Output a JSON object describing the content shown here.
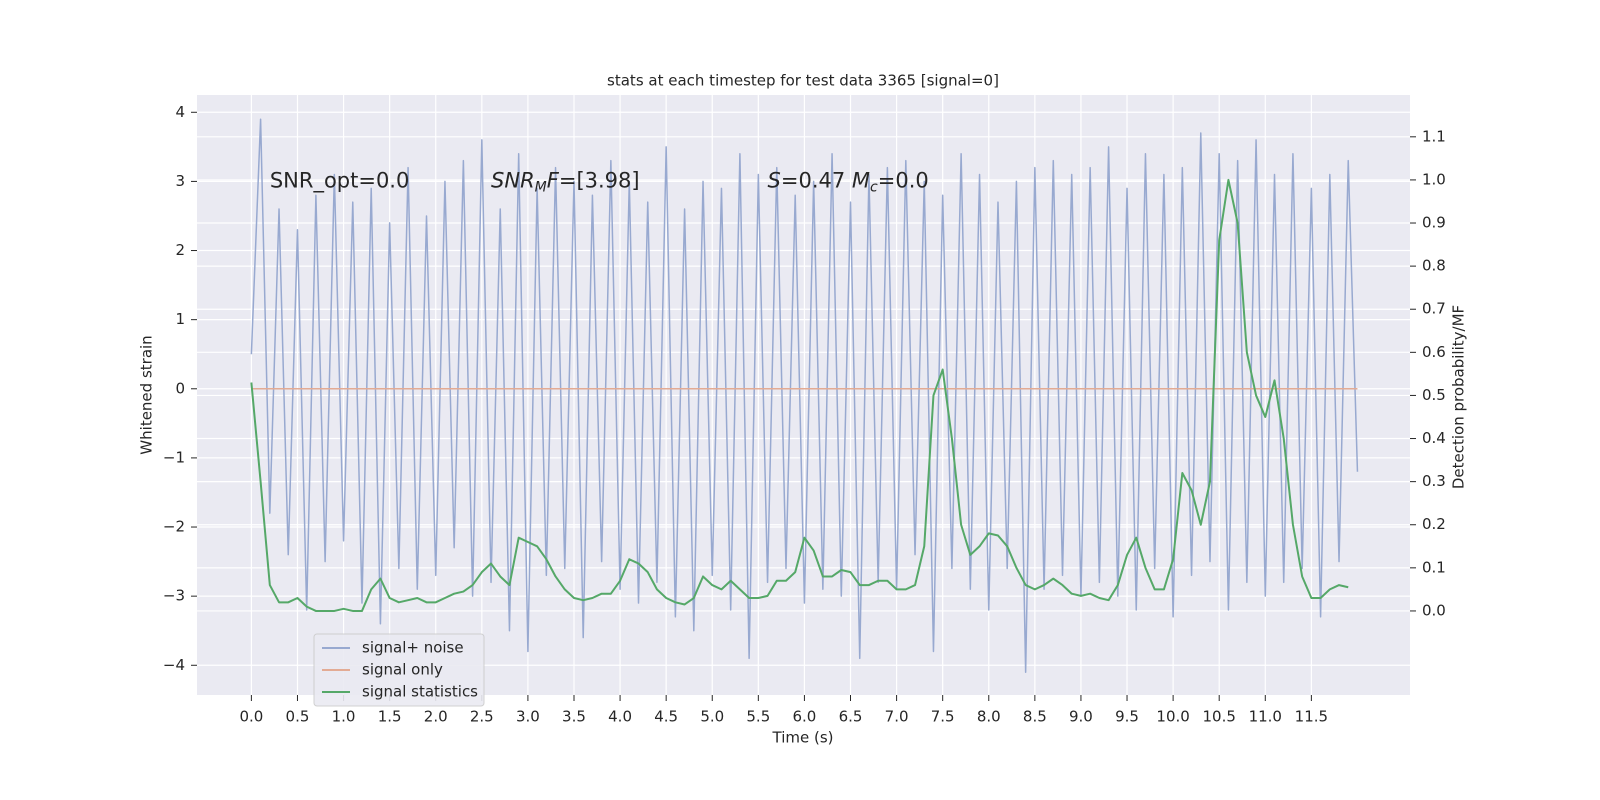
{
  "chart_data": {
    "type": "line",
    "title": "stats at each timestep for test data 3365 [signal=0]",
    "x_label": "Time (s)",
    "y_label": "Whitened strain",
    "y2_label": "Detection probability/MF",
    "x": [
      0.0,
      0.1,
      0.2,
      0.3,
      0.4,
      0.5,
      0.6,
      0.7,
      0.8,
      0.9,
      1.0,
      1.1,
      1.2,
      1.3,
      1.4,
      1.5,
      1.6,
      1.7,
      1.8,
      1.9,
      2.0,
      2.1,
      2.2,
      2.3,
      2.4,
      2.5,
      2.6,
      2.7,
      2.8,
      2.9,
      3.0,
      3.1,
      3.2,
      3.3,
      3.4,
      3.5,
      3.6,
      3.7,
      3.8,
      3.9,
      4.0,
      4.1,
      4.2,
      4.3,
      4.4,
      4.5,
      4.6,
      4.7,
      4.8,
      4.9,
      5.0,
      5.1,
      5.2,
      5.3,
      5.4,
      5.5,
      5.6,
      5.7,
      5.8,
      5.9,
      6.0,
      6.1,
      6.2,
      6.3,
      6.4,
      6.5,
      6.6,
      6.7,
      6.8,
      6.9,
      7.0,
      7.1,
      7.2,
      7.3,
      7.4,
      7.5,
      7.6,
      7.7,
      7.8,
      7.9,
      8.0,
      8.1,
      8.2,
      8.3,
      8.4,
      8.5,
      8.6,
      8.7,
      8.8,
      8.9,
      9.0,
      9.1,
      9.2,
      9.3,
      9.4,
      9.5,
      9.6,
      9.7,
      9.8,
      9.9,
      10.0,
      10.1,
      10.2,
      10.3,
      10.4,
      10.5,
      10.6,
      10.7,
      10.8,
      10.9,
      11.0,
      11.1,
      11.2,
      11.3,
      11.4,
      11.5,
      11.6,
      11.7,
      11.8,
      11.9,
      12.0
    ],
    "series": [
      {
        "name": "signal+ noise",
        "color": "#98a9d0",
        "values": [
          0.5,
          3.9,
          -1.8,
          2.6,
          -2.4,
          2.3,
          -3.2,
          2.8,
          -2.5,
          3.1,
          -2.2,
          2.7,
          -3.1,
          2.9,
          -3.4,
          2.4,
          -2.6,
          3.2,
          -2.9,
          2.5,
          -2.7,
          3.0,
          -2.3,
          3.3,
          -3.0,
          3.6,
          -2.8,
          2.6,
          -3.5,
          3.4,
          -3.8,
          2.9,
          -2.7,
          3.2,
          -2.6,
          3.0,
          -3.6,
          2.8,
          -2.5,
          3.3,
          -2.9,
          3.0,
          -3.1,
          2.7,
          -2.8,
          3.5,
          -3.3,
          2.6,
          -3.5,
          3.0,
          -2.7,
          2.9,
          -3.2,
          3.4,
          -3.9,
          3.1,
          -2.8,
          3.2,
          -2.6,
          2.8,
          -3.1,
          3.0,
          -2.9,
          3.4,
          -3.0,
          2.7,
          -3.9,
          3.1,
          -2.8,
          3.2,
          -2.9,
          3.3,
          -2.4,
          3.0,
          -3.8,
          2.8,
          -2.6,
          3.4,
          -2.9,
          3.1,
          -3.2,
          2.7,
          -2.6,
          3.0,
          -4.1,
          3.2,
          -2.9,
          3.3,
          -2.7,
          3.1,
          -3.0,
          3.2,
          -2.8,
          3.5,
          -3.0,
          2.9,
          -3.2,
          3.4,
          -2.6,
          3.1,
          -3.3,
          3.2,
          -2.7,
          3.7,
          -2.5,
          3.4,
          -3.2,
          3.3,
          -2.8,
          3.6,
          -3.0,
          3.1,
          -2.8,
          3.4,
          -2.6,
          2.9,
          -3.3,
          3.1,
          -2.5,
          3.3,
          -1.2
        ]
      },
      {
        "name": "signal only",
        "color": "#e3ab94",
        "values": [
          0,
          0,
          0,
          0,
          0,
          0,
          0,
          0,
          0,
          0,
          0,
          0,
          0,
          0,
          0,
          0,
          0,
          0,
          0,
          0,
          0,
          0,
          0,
          0,
          0,
          0,
          0,
          0,
          0,
          0,
          0,
          0,
          0,
          0,
          0,
          0,
          0,
          0,
          0,
          0,
          0,
          0,
          0,
          0,
          0,
          0,
          0,
          0,
          0,
          0,
          0,
          0,
          0,
          0,
          0,
          0,
          0,
          0,
          0,
          0,
          0,
          0,
          0,
          0,
          0,
          0,
          0,
          0,
          0,
          0,
          0,
          0,
          0,
          0,
          0,
          0,
          0,
          0,
          0,
          0,
          0,
          0,
          0,
          0,
          0,
          0,
          0,
          0,
          0,
          0,
          0,
          0,
          0,
          0,
          0,
          0,
          0,
          0,
          0,
          0,
          0,
          0,
          0,
          0,
          0,
          0,
          0,
          0,
          0,
          0,
          0,
          0,
          0,
          0,
          0,
          0,
          0,
          0,
          0,
          0,
          0
        ]
      },
      {
        "name": "signal statistics",
        "color": "#55a868",
        "axis": "y2",
        "values": [
          0.53,
          0.3,
          0.06,
          0.02,
          0.02,
          0.03,
          0.01,
          0.0,
          0.0,
          0.0,
          0.005,
          0.0,
          0.0,
          0.05,
          0.075,
          0.03,
          0.02,
          0.025,
          0.03,
          0.02,
          0.02,
          0.03,
          0.04,
          0.045,
          0.06,
          0.09,
          0.11,
          0.08,
          0.06,
          0.17,
          0.16,
          0.15,
          0.12,
          0.08,
          0.05,
          0.03,
          0.025,
          0.03,
          0.04,
          0.04,
          0.07,
          0.12,
          0.11,
          0.09,
          0.05,
          0.03,
          0.02,
          0.015,
          0.03,
          0.08,
          0.06,
          0.05,
          0.07,
          0.05,
          0.03,
          0.03,
          0.035,
          0.07,
          0.07,
          0.09,
          0.17,
          0.14,
          0.08,
          0.08,
          0.095,
          0.09,
          0.06,
          0.06,
          0.07,
          0.07,
          0.05,
          0.05,
          0.06,
          0.15,
          0.5,
          0.56,
          0.4,
          0.2,
          0.13,
          0.15,
          0.18,
          0.175,
          0.15,
          0.1,
          0.06,
          0.05,
          0.06,
          0.075,
          0.06,
          0.04,
          0.035,
          0.04,
          0.03,
          0.025,
          0.06,
          0.13,
          0.17,
          0.1,
          0.05,
          0.05,
          0.12,
          0.32,
          0.28,
          0.2,
          0.3,
          0.86,
          1.0,
          0.9,
          0.6,
          0.5,
          0.45,
          0.535,
          0.4,
          0.2,
          0.08,
          0.03,
          0.03,
          0.05,
          0.06,
          0.055,
          null
        ]
      }
    ],
    "xlim": [
      -0.59,
      12.57
    ],
    "xticks": [
      {
        "value": 0.0,
        "label": "0.0"
      },
      {
        "value": 0.5,
        "label": "0.5"
      },
      {
        "value": 1.0,
        "label": "1.0"
      },
      {
        "value": 1.5,
        "label": "1.5"
      },
      {
        "value": 2.0,
        "label": "2.0"
      },
      {
        "value": 2.5,
        "label": "2.5"
      },
      {
        "value": 3.0,
        "label": "3.0"
      },
      {
        "value": 3.5,
        "label": "3.5"
      },
      {
        "value": 4.0,
        "label": "4.0"
      },
      {
        "value": 4.5,
        "label": "4.5"
      },
      {
        "value": 5.0,
        "label": "5.0"
      },
      {
        "value": 5.5,
        "label": "5.5"
      },
      {
        "value": 6.0,
        "label": "6.0"
      },
      {
        "value": 6.5,
        "label": "6.5"
      },
      {
        "value": 7.0,
        "label": "7.0"
      },
      {
        "value": 7.5,
        "label": "7.5"
      },
      {
        "value": 8.0,
        "label": "8.0"
      },
      {
        "value": 8.5,
        "label": "8.5"
      },
      {
        "value": 9.0,
        "label": "9.0"
      },
      {
        "value": 9.5,
        "label": "9.5"
      },
      {
        "value": 10.0,
        "label": "10.0"
      },
      {
        "value": 10.5,
        "label": "10.5"
      },
      {
        "value": 11.0,
        "label": "11.0"
      },
      {
        "value": 11.5,
        "label": "11.5"
      }
    ],
    "ylim": [
      -4.43,
      4.25
    ],
    "yticks": [
      4,
      3,
      2,
      1,
      0,
      {
        "value": -1,
        "label": "−1"
      },
      {
        "value": -2,
        "label": "−2"
      },
      {
        "value": -3,
        "label": "−3"
      },
      {
        "value": -4,
        "label": "−4"
      }
    ],
    "y2lim": [
      -0.195,
      1.197
    ],
    "y2ticks": [
      {
        "value": 0.0,
        "label": "0.0"
      },
      {
        "value": 0.1,
        "label": "0.1"
      },
      {
        "value": 0.2,
        "label": "0.2"
      },
      {
        "value": 0.3,
        "label": "0.3"
      },
      {
        "value": 0.4,
        "label": "0.4"
      },
      {
        "value": 0.5,
        "label": "0.5"
      },
      {
        "value": 0.6,
        "label": "0.6"
      },
      {
        "value": 0.7,
        "label": "0.7"
      },
      {
        "value": 0.8,
        "label": "0.8"
      },
      {
        "value": 0.9,
        "label": "0.9"
      },
      {
        "value": 1.0,
        "label": "1.0"
      },
      {
        "value": 1.1,
        "label": "1.1"
      }
    ],
    "grid": true,
    "legend": "lower left",
    "annotations": [
      {
        "parts": [
          {
            "text": "SNR_opt=0.0"
          }
        ]
      },
      {
        "parts": [
          {
            "text": "SNR",
            "italic": true
          },
          {
            "text": "M",
            "italic": true,
            "sub": true
          },
          {
            "text": "F",
            "italic": true
          },
          {
            "text": "=[3.98]"
          }
        ]
      },
      {
        "parts": [
          {
            "text": "S",
            "italic": true
          },
          {
            "text": "=0.47   "
          },
          {
            "text": "M",
            "italic": true
          },
          {
            "text": "c",
            "italic": true,
            "sub": true
          },
          {
            "text": "=0.0"
          }
        ]
      }
    ]
  }
}
